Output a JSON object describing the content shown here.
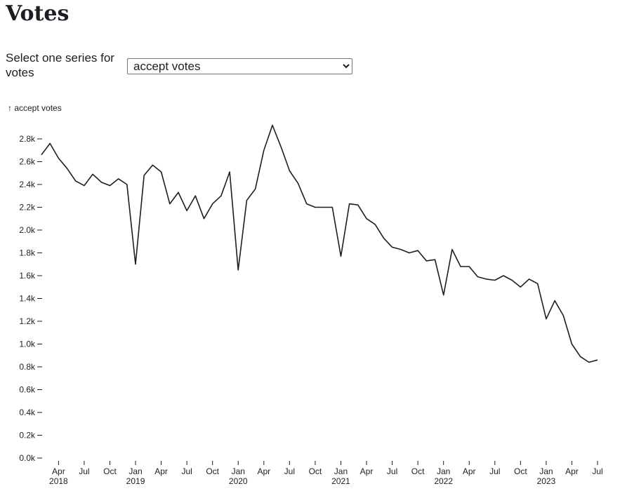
{
  "header": {
    "title": "Votes"
  },
  "control": {
    "label": "Select one series for votes",
    "selected": "accept votes"
  },
  "chart_data": {
    "type": "line",
    "y_label": "↑ accept votes",
    "color": "#1b1e23",
    "x": [
      "2018-02",
      "2018-03",
      "2018-04",
      "2018-05",
      "2018-06",
      "2018-07",
      "2018-08",
      "2018-09",
      "2018-10",
      "2018-11",
      "2018-12",
      "2019-01",
      "2019-02",
      "2019-03",
      "2019-04",
      "2019-05",
      "2019-06",
      "2019-07",
      "2019-08",
      "2019-09",
      "2019-10",
      "2019-11",
      "2019-12",
      "2020-01",
      "2020-02",
      "2020-03",
      "2020-04",
      "2020-05",
      "2020-06",
      "2020-07",
      "2020-08",
      "2020-09",
      "2020-10",
      "2020-11",
      "2020-12",
      "2021-01",
      "2021-02",
      "2021-03",
      "2021-04",
      "2021-05",
      "2021-06",
      "2021-07",
      "2021-08",
      "2021-09",
      "2021-10",
      "2021-11",
      "2021-12",
      "2022-01",
      "2022-02",
      "2022-03",
      "2022-04",
      "2022-05",
      "2022-06",
      "2022-07",
      "2022-08",
      "2022-09",
      "2022-10",
      "2022-11",
      "2022-12",
      "2023-01",
      "2023-02",
      "2023-03",
      "2023-04",
      "2023-05",
      "2023-06",
      "2023-07"
    ],
    "values": [
      2660,
      2760,
      2630,
      2540,
      2430,
      2390,
      2490,
      2420,
      2390,
      2450,
      2400,
      1700,
      2480,
      2570,
      2510,
      2230,
      2330,
      2170,
      2300,
      2100,
      2230,
      2300,
      2510,
      1650,
      2260,
      2360,
      2700,
      2920,
      2730,
      2520,
      2410,
      2230,
      2200,
      2200,
      2200,
      1770,
      2230,
      2220,
      2100,
      2050,
      1930,
      1850,
      1830,
      1800,
      1820,
      1730,
      1740,
      1430,
      1830,
      1680,
      1680,
      1590,
      1570,
      1560,
      1600,
      1560,
      1500,
      1570,
      1530,
      1220,
      1380,
      1250,
      1000,
      890,
      840,
      860
    ],
    "xlim": [
      "2018-02",
      "2023-07"
    ],
    "xticks": [
      {
        "value": "2018-04",
        "label": "Apr",
        "year": "2018"
      },
      {
        "value": "2018-07",
        "label": "Jul"
      },
      {
        "value": "2018-10",
        "label": "Oct"
      },
      {
        "value": "2019-01",
        "label": "Jan",
        "year": "2019"
      },
      {
        "value": "2019-04",
        "label": "Apr"
      },
      {
        "value": "2019-07",
        "label": "Jul"
      },
      {
        "value": "2019-10",
        "label": "Oct"
      },
      {
        "value": "2020-01",
        "label": "Jan",
        "year": "2020"
      },
      {
        "value": "2020-04",
        "label": "Apr"
      },
      {
        "value": "2020-07",
        "label": "Jul"
      },
      {
        "value": "2020-10",
        "label": "Oct"
      },
      {
        "value": "2021-01",
        "label": "Jan",
        "year": "2021"
      },
      {
        "value": "2021-04",
        "label": "Apr"
      },
      {
        "value": "2021-07",
        "label": "Jul"
      },
      {
        "value": "2021-10",
        "label": "Oct"
      },
      {
        "value": "2022-01",
        "label": "Jan",
        "year": "2022"
      },
      {
        "value": "2022-04",
        "label": "Apr"
      },
      {
        "value": "2022-07",
        "label": "Jul"
      },
      {
        "value": "2022-10",
        "label": "Oct"
      },
      {
        "value": "2023-01",
        "label": "Jan",
        "year": "2023"
      },
      {
        "value": "2023-04",
        "label": "Apr"
      },
      {
        "value": "2023-07",
        "label": "Jul"
      }
    ],
    "ylim": [
      0,
      2950
    ],
    "yticks": [
      {
        "value": 0,
        "label": "0.0k"
      },
      {
        "value": 200,
        "label": "0.2k"
      },
      {
        "value": 400,
        "label": "0.4k"
      },
      {
        "value": 600,
        "label": "0.6k"
      },
      {
        "value": 800,
        "label": "0.8k"
      },
      {
        "value": 1000,
        "label": "1.0k"
      },
      {
        "value": 1200,
        "label": "1.2k"
      },
      {
        "value": 1400,
        "label": "1.4k"
      },
      {
        "value": 1600,
        "label": "1.6k"
      },
      {
        "value": 1800,
        "label": "1.8k"
      },
      {
        "value": 2000,
        "label": "2.0k"
      },
      {
        "value": 2200,
        "label": "2.2k"
      },
      {
        "value": 2400,
        "label": "2.4k"
      },
      {
        "value": 2600,
        "label": "2.6k"
      },
      {
        "value": 2800,
        "label": "2.8k"
      }
    ]
  }
}
